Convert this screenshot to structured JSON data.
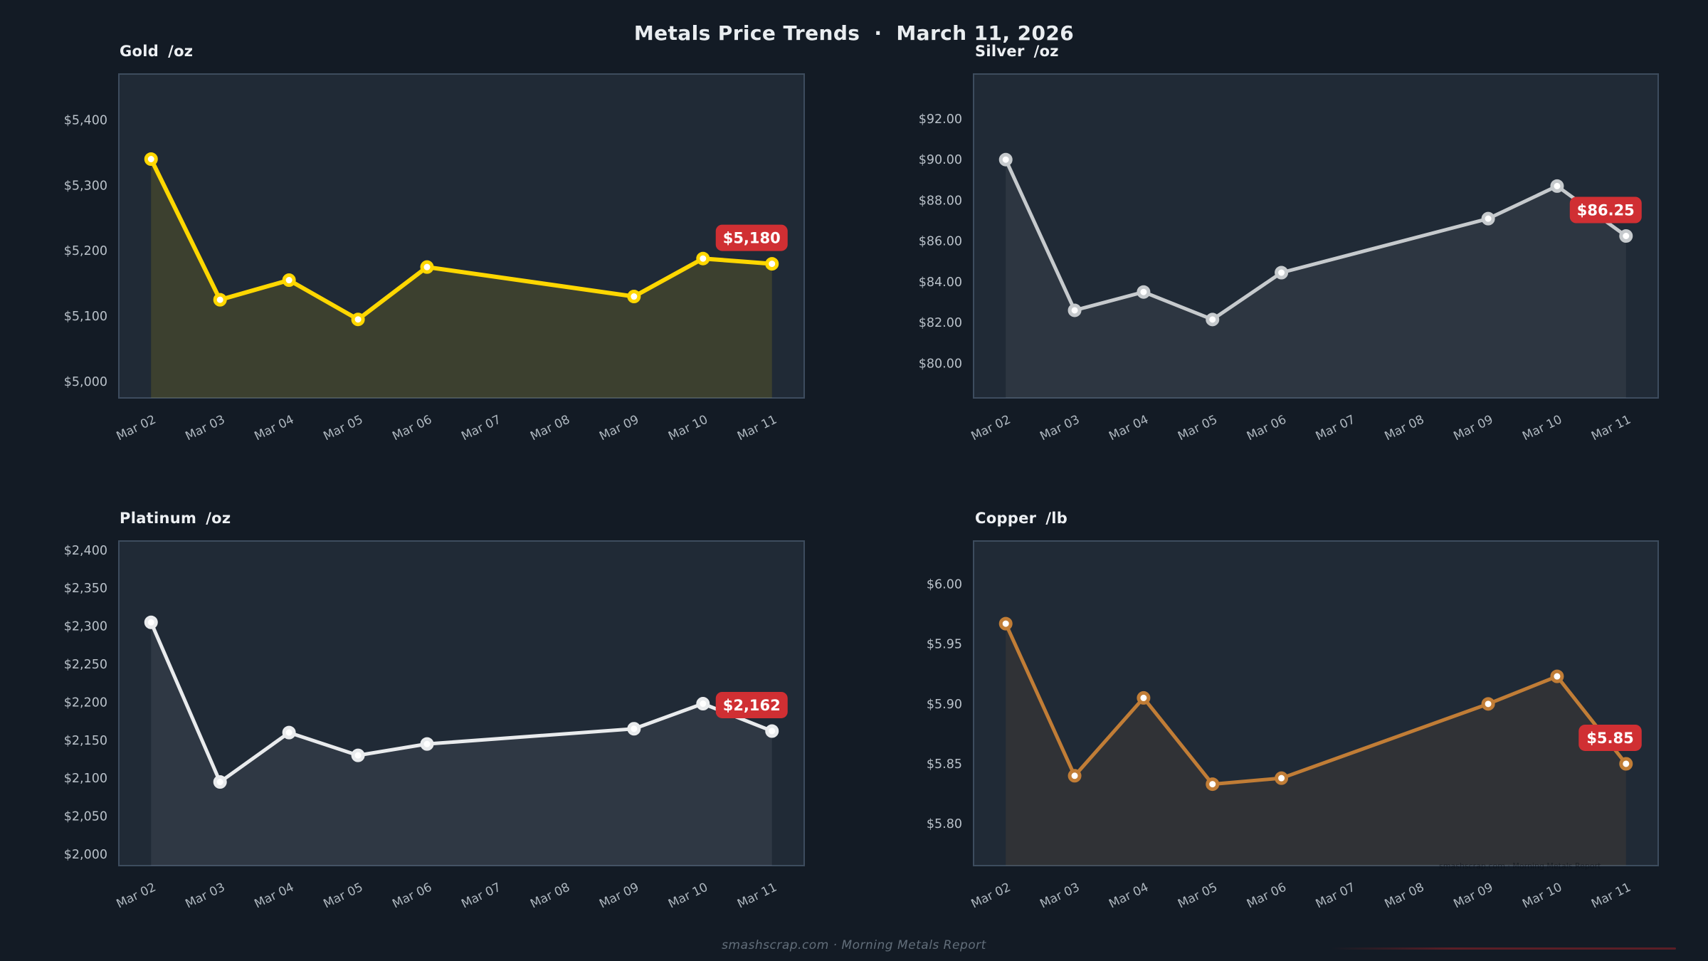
{
  "header": {
    "title": "Metals Price Trends",
    "separator": "·",
    "date": "March 11, 2026"
  },
  "footer": {
    "text": "smashscrap.com · Morning Metals Report"
  },
  "watermark": {
    "text": "smashscrap.com · Morning Metals Report"
  },
  "colors": {
    "background": "#131b25",
    "panel": "#202a36",
    "panel_border": "#3d4c5e",
    "axis_text": "#b9c1c9",
    "x_axis_text": "#aeb7bf",
    "title_text": "#edf0f3",
    "badge_bg": "#d02f33",
    "badge_text": "#ffffff",
    "footer_text": "#626e7a",
    "gold_line": "#ffd700",
    "silver_line": "#c6cacd",
    "platinum_line": "#e9ebed",
    "copper_line": "#c17d36"
  },
  "chart_data": {
    "type": "line",
    "note": "Mar 07 and Mar 08 (weekend) have no data points; line connects Mar 06 directly to Mar 09. Shaded area fills under each line. No gridlines.",
    "categories": [
      "Mar 02",
      "Mar 03",
      "Mar 04",
      "Mar 05",
      "Mar 06",
      "Mar 07",
      "Mar 08",
      "Mar 09",
      "Mar 10",
      "Mar 11"
    ],
    "charts": [
      {
        "id": "gold",
        "title": "Gold",
        "unit": "/oz",
        "color": "#ffd700",
        "badge": "$5,180",
        "ylim": [
          4975,
          5470
        ],
        "ytick_values": [
          5000,
          5100,
          5200,
          5300,
          5400
        ],
        "ytick_labels": [
          "$5,000",
          "$5,100",
          "$5,200",
          "$5,300",
          "$5,400"
        ],
        "values": [
          5340,
          5125,
          5155,
          5095,
          5175,
          null,
          null,
          5130,
          5188,
          5180
        ]
      },
      {
        "id": "silver",
        "title": "Silver",
        "unit": "/oz",
        "color": "#c6cacd",
        "badge": "$86.25",
        "ylim": [
          78.3,
          94.2
        ],
        "ytick_values": [
          80,
          82,
          84,
          86,
          88,
          90,
          92
        ],
        "ytick_labels": [
          "$80.00",
          "$82.00",
          "$84.00",
          "$86.00",
          "$88.00",
          "$90.00",
          "$92.00"
        ],
        "values": [
          90.0,
          82.6,
          83.5,
          82.15,
          84.45,
          null,
          null,
          87.1,
          88.7,
          86.25
        ]
      },
      {
        "id": "platinum",
        "title": "Platinum",
        "unit": "/oz",
        "color": "#e9ebed",
        "badge": "$2,162",
        "ylim": [
          1985,
          2412
        ],
        "ytick_values": [
          2000,
          2050,
          2100,
          2150,
          2200,
          2250,
          2300,
          2350,
          2400
        ],
        "ytick_labels": [
          "$2,000",
          "$2,050",
          "$2,100",
          "$2,150",
          "$2,200",
          "$2,250",
          "$2,300",
          "$2,350",
          "$2,400"
        ],
        "values": [
          2305,
          2095,
          2160,
          2130,
          2145,
          null,
          null,
          2165,
          2198,
          2162
        ]
      },
      {
        "id": "copper",
        "title": "Copper",
        "unit": "/lb",
        "color": "#c17d36",
        "badge": "$5.85",
        "ylim": [
          5.765,
          6.036
        ],
        "ytick_values": [
          5.8,
          5.85,
          5.9,
          5.95,
          6.0
        ],
        "ytick_labels": [
          "$5.80",
          "$5.85",
          "$5.90",
          "$5.95",
          "$6.00"
        ],
        "values": [
          5.967,
          5.84,
          5.905,
          5.833,
          5.838,
          null,
          null,
          5.9,
          5.923,
          5.85
        ]
      }
    ]
  }
}
